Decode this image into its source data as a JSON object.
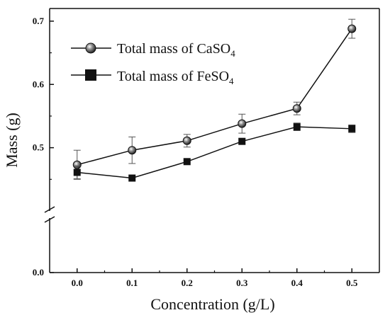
{
  "chart_data": {
    "type": "line",
    "xlabel": "Concentration (g/L)",
    "ylabel": "Mass (g)",
    "x": [
      0.0,
      0.1,
      0.2,
      0.3,
      0.4,
      0.5
    ],
    "x_tick_labels": [
      "0.0",
      "0.1",
      "0.2",
      "0.3",
      "0.4",
      "0.5"
    ],
    "y_tick_labels": [
      "0.0",
      "0.5",
      "0.6",
      "0.7"
    ],
    "y_tick_values": [
      0.0,
      0.5,
      0.6,
      0.7
    ],
    "xlim": [
      -0.05,
      0.55
    ],
    "ylim_upper_segment": [
      0.4,
      0.72
    ],
    "ylim_lower_segment": [
      0.0,
      0.4
    ],
    "y_axis_break": true,
    "grid": false,
    "legend_position": "top-left",
    "series": [
      {
        "name_main": "Total mass of CaSO",
        "name_subscript": "4",
        "marker": "sphere",
        "color": "#111111",
        "values": [
          0.473,
          0.496,
          0.511,
          0.538,
          0.562,
          0.688
        ],
        "errors": [
          0.023,
          0.021,
          0.01,
          0.015,
          0.01,
          0.015
        ]
      },
      {
        "name_main": "Total mass of FeSO",
        "name_subscript": "4",
        "marker": "square",
        "color": "#111111",
        "values": [
          0.461,
          0.452,
          0.478,
          0.51,
          0.533,
          0.53
        ],
        "errors": [
          0.01,
          0.0,
          0.0,
          0.004,
          0.006,
          0.006
        ]
      }
    ]
  }
}
